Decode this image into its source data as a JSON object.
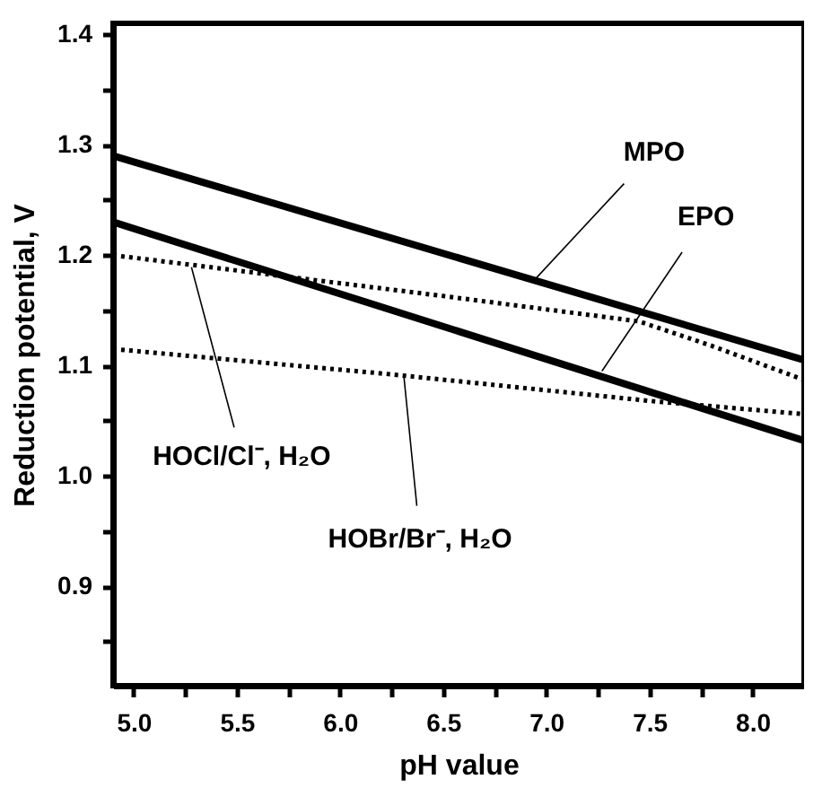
{
  "chart_data": {
    "type": "line",
    "xlabel": "pH value",
    "ylabel": "Reduction potential, V",
    "xlim": [
      4.9,
      8.25
    ],
    "ylim": [
      0.81,
      1.41
    ],
    "xticks": [
      {
        "value": 5.0,
        "label": "5.0"
      },
      {
        "value": 5.25,
        "label": null
      },
      5.5,
      {
        "value": 5.75,
        "label": null
      },
      {
        "value": 6.0,
        "label": "6.0"
      },
      {
        "value": 6.25,
        "label": null
      },
      6.5,
      {
        "value": 6.75,
        "label": null
      },
      {
        "value": 7.0,
        "label": "7.0"
      },
      {
        "value": 7.25,
        "label": null
      },
      7.5,
      {
        "value": 7.75,
        "label": null
      },
      {
        "value": 8.0,
        "label": "8.0"
      }
    ],
    "yticks": [
      {
        "value": 0.85,
        "label": null
      },
      0.9,
      {
        "value": 0.95,
        "label": null
      },
      {
        "value": 1.0,
        "label": "1.0"
      },
      {
        "value": 1.05,
        "label": null
      },
      1.1,
      {
        "value": 1.15,
        "label": null
      },
      1.2,
      {
        "value": 1.25,
        "label": null
      },
      1.3,
      {
        "value": 1.35,
        "label": null
      },
      1.4
    ],
    "grid": false,
    "marker": "none",
    "series": [
      {
        "color": "#000000",
        "line_style": "solid",
        "x": [
          4.9,
          8.25
        ],
        "values": [
          1.29,
          1.105
        ]
      },
      {
        "color": "#000000",
        "line_style": "solid",
        "x": [
          4.9,
          8.25
        ],
        "values": [
          1.23,
          1.032
        ]
      },
      {
        "color": "#000000",
        "line_style": "dotted",
        "x": [
          4.9,
          6.5,
          7.45,
          7.8,
          8.25
        ],
        "values": [
          1.2,
          1.163,
          1.14,
          1.118,
          1.087
        ]
      },
      {
        "color": "#000000",
        "line_style": "dotted",
        "x": [
          4.9,
          6.25,
          7.5,
          8.25
        ],
        "values": [
          1.115,
          1.092,
          1.068,
          1.056
        ]
      }
    ],
    "annotations": [
      {
        "text": "MPO",
        "x": 6.94,
        "y": 1.177
      },
      {
        "text": "EPO",
        "x": 7.27,
        "y": 1.095
      },
      {
        "text": "HOCl/Cl⁻, H₂O",
        "x": 5.28,
        "y": 1.189
      },
      {
        "text": "HOBr/Br⁻, H₂O",
        "x": 6.31,
        "y": 1.09
      }
    ]
  }
}
